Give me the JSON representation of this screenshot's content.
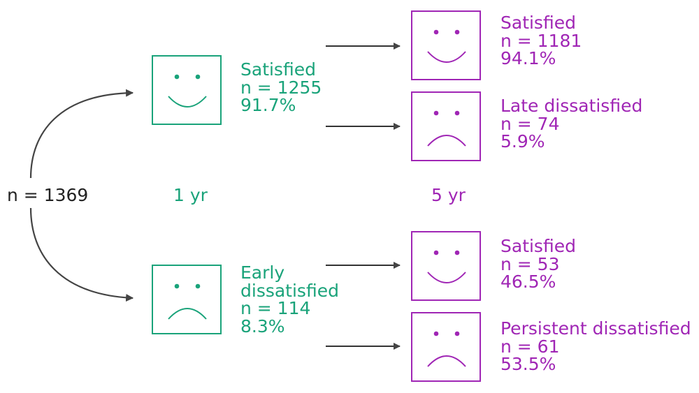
{
  "colors": {
    "one_year": "#1aa37a",
    "five_year": "#a026b5",
    "root": "#222222",
    "arrow": "#444444"
  },
  "root": {
    "count": "n = 1369"
  },
  "timepoints": {
    "one_year": "1 yr",
    "five_year": "5 yr"
  },
  "one_year": {
    "satisfied": {
      "icon": "smile-icon",
      "label": "Satisfied",
      "count": "n = 1255",
      "percent": "91.7%"
    },
    "dissatisfied": {
      "icon": "frown-icon",
      "label_line1": "Early",
      "label_line2": "dissatisfied",
      "count": "n = 114",
      "percent": "8.3%"
    }
  },
  "five_year": {
    "from_satisfied": [
      {
        "icon": "smile-icon",
        "label": "Satisfied",
        "count": "n = 1181",
        "percent": "94.1%"
      },
      {
        "icon": "frown-icon",
        "label": "Late dissatisfied",
        "count": "n = 74",
        "percent": "5.9%"
      }
    ],
    "from_dissatisfied": [
      {
        "icon": "smile-icon",
        "label": "Satisfied",
        "count": "n = 53",
        "percent": "46.5%"
      },
      {
        "icon": "frown-icon",
        "label": "Persistent dissatisfied",
        "count": "n = 61",
        "percent": "53.5%"
      }
    ]
  }
}
